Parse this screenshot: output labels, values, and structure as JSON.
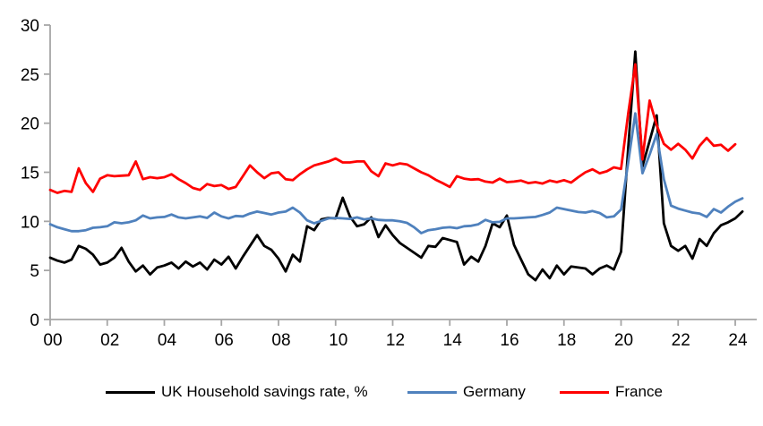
{
  "chart_data": {
    "type": "line",
    "title": "",
    "xlabel": "",
    "ylabel": "",
    "x_start_year": 2000,
    "x_step_years": 0.25,
    "xlim_years": [
      0,
      24.75
    ],
    "ylim": [
      0,
      30
    ],
    "grid": false,
    "legend_position": "bottom",
    "axis_color": "#a6a6a6",
    "text_color": "#000000",
    "y_ticks": [
      0,
      5,
      10,
      15,
      20,
      25,
      30
    ],
    "x_tick_years": [
      0,
      2,
      4,
      6,
      8,
      10,
      12,
      14,
      16,
      18,
      20,
      22,
      24
    ],
    "x_tick_labels": [
      "00",
      "02",
      "04",
      "06",
      "08",
      "10",
      "12",
      "14",
      "16",
      "18",
      "20",
      "22",
      "24"
    ],
    "series": [
      {
        "name": "UK Household savings rate, %",
        "color": "#000000",
        "values": [
          6.3,
          6.0,
          5.8,
          6.1,
          7.5,
          7.2,
          6.6,
          5.6,
          5.8,
          6.3,
          7.3,
          5.9,
          4.9,
          5.5,
          4.6,
          5.3,
          5.5,
          5.8,
          5.2,
          5.9,
          5.4,
          5.8,
          5.1,
          6.1,
          5.6,
          6.4,
          5.2,
          6.4,
          7.5,
          8.6,
          7.5,
          7.1,
          6.2,
          4.9,
          6.6,
          5.9,
          9.5,
          9.1,
          10.2,
          10.35,
          10.3,
          12.4,
          10.5,
          9.5,
          9.7,
          10.4,
          8.4,
          9.6,
          8.6,
          7.8,
          7.3,
          6.8,
          6.3,
          7.5,
          7.4,
          8.3,
          8.1,
          7.9,
          5.6,
          6.4,
          5.9,
          7.5,
          9.8,
          9.4,
          10.6,
          7.6,
          6.1,
          4.6,
          4.0,
          5.1,
          4.2,
          5.5,
          4.6,
          5.4,
          5.3,
          5.2,
          4.6,
          5.2,
          5.5,
          5.1,
          6.9,
          17.5,
          27.3,
          15.6,
          18.2,
          20.8,
          9.8,
          7.5,
          7.0,
          7.5,
          6.2,
          8.2,
          7.5,
          8.8,
          9.6,
          9.9,
          10.3,
          11.0
        ]
      },
      {
        "name": "Germany",
        "color": "#4f81bd",
        "values": [
          9.7,
          9.4,
          9.2,
          9.0,
          9.0,
          9.1,
          9.35,
          9.4,
          9.5,
          9.9,
          9.8,
          9.9,
          10.1,
          10.6,
          10.3,
          10.4,
          10.45,
          10.7,
          10.4,
          10.3,
          10.4,
          10.5,
          10.35,
          10.9,
          10.5,
          10.3,
          10.55,
          10.5,
          10.8,
          11.0,
          10.85,
          10.7,
          10.9,
          11.0,
          11.4,
          10.9,
          10.1,
          9.8,
          10.05,
          10.3,
          10.35,
          10.3,
          10.25,
          10.4,
          10.2,
          10.3,
          10.15,
          10.1,
          10.1,
          10.0,
          9.85,
          9.4,
          8.8,
          9.1,
          9.2,
          9.35,
          9.4,
          9.3,
          9.5,
          9.55,
          9.7,
          10.15,
          9.9,
          9.95,
          10.3,
          10.3,
          10.35,
          10.4,
          10.45,
          10.65,
          10.9,
          11.4,
          11.25,
          11.1,
          10.95,
          10.9,
          11.05,
          10.85,
          10.4,
          10.5,
          11.2,
          16.0,
          21.0,
          14.9,
          16.8,
          18.9,
          14.3,
          11.6,
          11.3,
          11.1,
          10.9,
          10.8,
          10.45,
          11.25,
          10.9,
          11.5,
          12.0,
          12.35
        ]
      },
      {
        "name": "France",
        "color": "#ff0000",
        "values": [
          13.2,
          12.9,
          13.1,
          13.0,
          15.4,
          13.9,
          13.0,
          14.35,
          14.7,
          14.6,
          14.65,
          14.7,
          16.1,
          14.3,
          14.5,
          14.4,
          14.5,
          14.8,
          14.3,
          13.9,
          13.4,
          13.2,
          13.8,
          13.6,
          13.7,
          13.3,
          13.5,
          14.6,
          15.7,
          15.0,
          14.4,
          14.9,
          15.0,
          14.3,
          14.2,
          14.8,
          15.3,
          15.7,
          15.9,
          16.1,
          16.4,
          16.0,
          16.0,
          16.1,
          16.1,
          15.1,
          14.6,
          15.9,
          15.7,
          15.9,
          15.8,
          15.4,
          15.0,
          14.7,
          14.25,
          13.9,
          13.5,
          14.6,
          14.35,
          14.25,
          14.3,
          14.05,
          13.95,
          14.35,
          14.0,
          14.05,
          14.15,
          13.9,
          14.0,
          13.85,
          14.15,
          14.0,
          14.2,
          13.95,
          14.5,
          15.0,
          15.3,
          14.9,
          15.1,
          15.5,
          15.35,
          21.0,
          26.0,
          16.3,
          22.3,
          19.8,
          17.9,
          17.3,
          17.9,
          17.3,
          16.4,
          17.7,
          18.5,
          17.7,
          17.8,
          17.2,
          17.85,
          null
        ]
      }
    ]
  }
}
